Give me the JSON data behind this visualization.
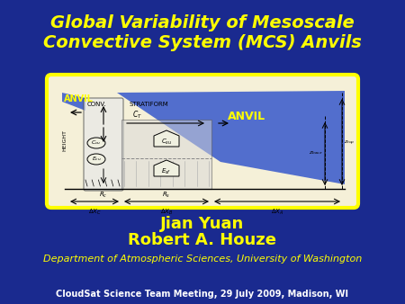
{
  "background_color": "#1a2a8f",
  "title_line1": "Global Variability of Mesoscale",
  "title_line2": "Convective System (MCS) Anvils",
  "title_color": "#ffff00",
  "title_fontsize": 14,
  "author1": "Jian Yuan",
  "author2": "Robert A. Houze",
  "author_color": "#ffff00",
  "author_fontsize": 13,
  "dept": "Department of Atmospheric Sciences, University of Washington",
  "dept_color": "#ffff00",
  "dept_fontsize": 8,
  "footer": "CloudSat Science Team Meeting, 29 July 2009, Madison, WI",
  "footer_color": "#ffffff",
  "footer_fontsize": 7,
  "diagram_border_color": "#ffff00",
  "diagram_bg": "#f5f0d8",
  "anvil_fill": "#4060cc"
}
